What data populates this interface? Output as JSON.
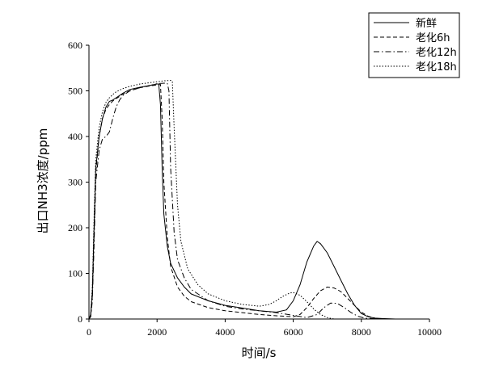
{
  "chart_data": {
    "type": "line",
    "title": "",
    "xlabel": "时间/s",
    "ylabel": "出口NH3浓度/ppm",
    "xlim": [
      0,
      10000
    ],
    "ylim": [
      0,
      600
    ],
    "xticks": [
      0,
      2000,
      4000,
      6000,
      8000,
      10000
    ],
    "yticks": [
      0,
      100,
      200,
      300,
      400,
      500,
      600
    ],
    "grid": false,
    "legend_position": "top-right",
    "series": [
      {
        "name": "新鲜",
        "dash": "solid",
        "x": [
          0,
          50,
          100,
          150,
          200,
          300,
          400,
          500,
          600,
          700,
          800,
          1000,
          1200,
          1500,
          1800,
          2000,
          2050,
          2100,
          2150,
          2200,
          2300,
          2400,
          2600,
          2800,
          3000,
          3500,
          4000,
          4500,
          5000,
          5500,
          5800,
          6000,
          6200,
          6400,
          6600,
          6700,
          6800,
          7000,
          7200,
          7400,
          7600,
          7800,
          8000,
          8200,
          8400,
          8600,
          9000
        ],
        "y": [
          0,
          10,
          60,
          200,
          330,
          400,
          440,
          465,
          477,
          480,
          485,
          495,
          503,
          508,
          512,
          515,
          515,
          470,
          330,
          230,
          160,
          122,
          90,
          70,
          55,
          40,
          30,
          24,
          18,
          15,
          20,
          40,
          75,
          125,
          160,
          170,
          165,
          145,
          115,
          85,
          55,
          30,
          12,
          5,
          2,
          1,
          0
        ]
      },
      {
        "name": "老化6h",
        "dash": "dashed",
        "x": [
          0,
          50,
          100,
          150,
          200,
          300,
          400,
          500,
          600,
          700,
          800,
          1000,
          1200,
          1500,
          1800,
          2000,
          2100,
          2150,
          2200,
          2300,
          2400,
          2600,
          2800,
          3000,
          3500,
          4000,
          4500,
          5000,
          5500,
          6000,
          6200,
          6400,
          6600,
          6800,
          7000,
          7200,
          7400,
          7600,
          7800,
          8000,
          8200,
          8400,
          8600
        ],
        "y": [
          0,
          5,
          50,
          180,
          320,
          400,
          440,
          460,
          470,
          478,
          483,
          493,
          500,
          507,
          511,
          513,
          514,
          440,
          300,
          180,
          115,
          70,
          50,
          38,
          25,
          18,
          14,
          10,
          7,
          5,
          10,
          25,
          45,
          62,
          70,
          68,
          60,
          45,
          30,
          15,
          6,
          2,
          0
        ]
      },
      {
        "name": "老化12h",
        "dash": "dashdot",
        "x": [
          0,
          50,
          100,
          150,
          200,
          300,
          400,
          500,
          600,
          700,
          800,
          900,
          1000,
          1200,
          1500,
          1800,
          2000,
          2300,
          2350,
          2400,
          2500,
          2600,
          2800,
          3000,
          3500,
          4000,
          4500,
          5000,
          5500,
          6000,
          6400,
          6700,
          6900,
          7100,
          7300,
          7500,
          7700,
          7900,
          8100,
          8300,
          8600
        ],
        "y": [
          0,
          5,
          40,
          160,
          300,
          370,
          395,
          400,
          410,
          440,
          465,
          480,
          490,
          500,
          507,
          512,
          516,
          517,
          500,
          330,
          190,
          130,
          90,
          65,
          40,
          28,
          22,
          18,
          14,
          8,
          3,
          10,
          25,
          35,
          34,
          25,
          14,
          6,
          2,
          1,
          0
        ]
      },
      {
        "name": "老化18h",
        "dash": "dotted",
        "x": [
          0,
          50,
          100,
          150,
          200,
          300,
          400,
          500,
          600,
          700,
          800,
          1000,
          1200,
          1500,
          1800,
          2000,
          2200,
          2400,
          2450,
          2500,
          2600,
          2700,
          2900,
          3200,
          3500,
          4000,
          4500,
          5000,
          5300,
          5500,
          5700,
          5900,
          6000,
          6200,
          6400,
          6600,
          6800,
          7000,
          7200
        ],
        "y": [
          0,
          8,
          70,
          220,
          350,
          420,
          455,
          475,
          485,
          492,
          498,
          505,
          510,
          515,
          518,
          520,
          522,
          523,
          520,
          420,
          250,
          170,
          110,
          75,
          55,
          40,
          32,
          28,
          32,
          40,
          50,
          57,
          58,
          52,
          38,
          22,
          10,
          3,
          0
        ]
      }
    ]
  }
}
